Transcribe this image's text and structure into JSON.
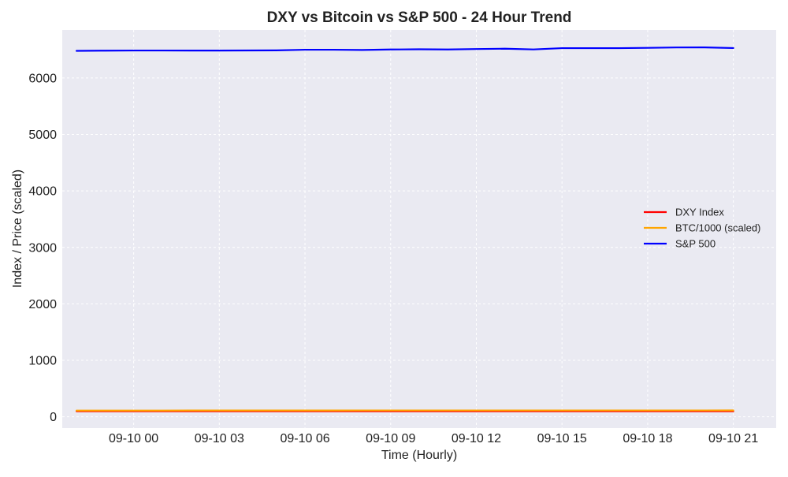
{
  "chart_data": {
    "type": "line",
    "title": "DXY vs Bitcoin vs S&P 500 - 24 Hour Trend",
    "xlabel": "Time (Hourly)",
    "ylabel": "Index / Price (scaled)",
    "x": [
      "09-09 22:00",
      "09-09 23:00",
      "09-10 00:00",
      "09-10 01:00",
      "09-10 02:00",
      "09-10 03:00",
      "09-10 04:00",
      "09-10 05:00",
      "09-10 06:00",
      "09-10 07:00",
      "09-10 08:00",
      "09-10 09:00",
      "09-10 10:00",
      "09-10 11:00",
      "09-10 12:00",
      "09-10 13:00",
      "09-10 14:00",
      "09-10 15:00",
      "09-10 16:00",
      "09-10 17:00",
      "09-10 18:00",
      "09-10 19:00",
      "09-10 20:00",
      "09-10 21:00"
    ],
    "xlim": [
      "09-09 21:30",
      "09-10 22:30"
    ],
    "x_ticks": [
      "09-10 00",
      "09-10 03",
      "09-10 06",
      "09-10 09",
      "09-10 12",
      "09-10 15",
      "09-10 18",
      "09-10 21"
    ],
    "ylim": [
      -200,
      6850
    ],
    "y_ticks": [
      0,
      1000,
      2000,
      3000,
      4000,
      5000,
      6000
    ],
    "grid": true,
    "legend_position": "center-right",
    "series": [
      {
        "name": "DXY Index",
        "color": "#ff0000",
        "values": [
          97.8,
          97.8,
          97.8,
          97.8,
          97.8,
          97.8,
          97.8,
          97.8,
          97.8,
          97.8,
          97.8,
          97.8,
          97.8,
          97.8,
          97.8,
          97.8,
          97.8,
          97.8,
          97.8,
          97.8,
          97.8,
          97.8,
          97.8,
          97.8
        ]
      },
      {
        "name": "BTC/1000 (scaled)",
        "color": "#ffa500",
        "values": [
          111,
          111,
          111,
          111,
          112,
          112,
          112,
          112,
          112,
          112,
          113,
          113,
          113,
          113,
          113,
          113,
          113,
          113,
          113,
          113,
          113,
          113,
          113,
          114
        ]
      },
      {
        "name": "S&P 500",
        "color": "#0000ff",
        "values": [
          6480,
          6484,
          6486,
          6486,
          6485,
          6485,
          6487,
          6489,
          6500,
          6500,
          6496,
          6504,
          6508,
          6504,
          6512,
          6518,
          6505,
          6528,
          6528,
          6528,
          6533,
          6540,
          6541,
          6530
        ]
      }
    ]
  }
}
